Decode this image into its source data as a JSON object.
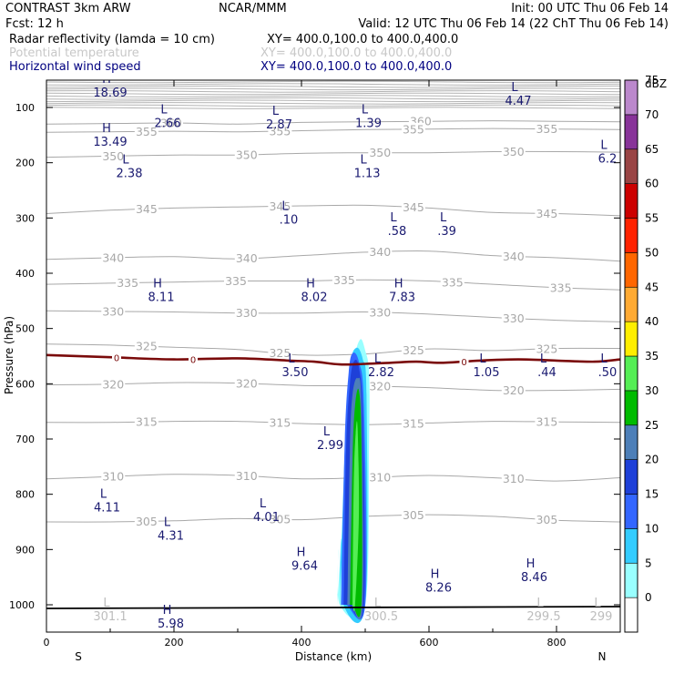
{
  "header": {
    "model": "CONTRAST  3km ARW",
    "center": "NCAR/MMM",
    "init": "Init: 00 UTC Thu 06 Feb 14",
    "fcst": "Fcst:    12 h",
    "valid": "Valid: 12 UTC Thu 06 Feb 14 (22 ChT Thu 06 Feb 14)",
    "line1_label": "Radar reflectivity (lamda = 10 cm)",
    "line1_xy": "XY= 400.0,100.0 to 400.0,400.0",
    "line2_label": "Potential temperature",
    "line2_xy": "XY= 400.0,100.0 to 400.0,400.0",
    "line3_label": "Horizontal wind speed",
    "line3_xy": "XY= 400.0,100.0 to 400.0,400.0"
  },
  "chart_data": {
    "type": "contour-cross-section",
    "xlabel": "Distance (km)",
    "ylabel": "Pressure (hPa)",
    "xlim": [
      0,
      900
    ],
    "ylim": [
      1050,
      50
    ],
    "x_ticks": [
      0,
      200,
      400,
      600,
      800
    ],
    "x_tick_labels": [
      "0",
      "200",
      "400",
      "600",
      "800"
    ],
    "y_ticks": [
      100,
      200,
      300,
      400,
      500,
      600,
      700,
      800,
      900,
      1000
    ],
    "y_tick_labels": [
      "100",
      "200",
      "300",
      "400",
      "500",
      "600",
      "700",
      "800",
      "900",
      "1000"
    ],
    "end_labels": {
      "left": "S",
      "right": "N"
    },
    "colorbar": {
      "unit": "dBZ",
      "labels": [
        "0",
        "5",
        "10",
        "15",
        "20",
        "25",
        "30",
        "35",
        "40",
        "45",
        "50",
        "55",
        "60",
        "65",
        "70",
        "75"
      ],
      "colors": [
        "#ffffff",
        "#99ffff",
        "#33ccff",
        "#3366ff",
        "#1e40d8",
        "#4d7fb8",
        "#00bb00",
        "#55ee55",
        "#ffee00",
        "#ffaa33",
        "#ff6600",
        "#ff2200",
        "#cc0000",
        "#994444",
        "#883399",
        "#bb88cc"
      ]
    },
    "theta_contours": [
      {
        "value": 360,
        "p": [
          130,
          129,
          128,
          130,
          127,
          126,
          125,
          124,
          125,
          126
        ],
        "labels": [
          "360",
          "360"
        ]
      },
      {
        "value": 355,
        "p": [
          145,
          144,
          143,
          144,
          142,
          140,
          139,
          138,
          139,
          140
        ],
        "labels": [
          "355",
          "355",
          "355",
          "355"
        ]
      },
      {
        "value": 350,
        "p": [
          190,
          188,
          186,
          186,
          183,
          182,
          182,
          180,
          180,
          181
        ],
        "labels": [
          "350",
          "350",
          "350",
          "350"
        ]
      },
      {
        "value": 345,
        "p": [
          292,
          286,
          282,
          280,
          278,
          277,
          282,
          290,
          292,
          296
        ],
        "labels": [
          "345",
          "345",
          "345",
          "345"
        ]
      },
      {
        "value": 340,
        "p": [
          375,
          372,
          370,
          374,
          368,
          362,
          360,
          368,
          372,
          378
        ],
        "labels": [
          "340",
          "340",
          "340",
          "340"
        ]
      },
      {
        "value": 335,
        "p": [
          420,
          418,
          416,
          414,
          414,
          412,
          414,
          420,
          426,
          430
        ],
        "labels": [
          "335",
          "335",
          "335",
          "335",
          "335"
        ]
      },
      {
        "value": 330,
        "p": [
          468,
          469,
          470,
          472,
          472,
          470,
          474,
          480,
          485,
          488
        ],
        "labels": [
          "330",
          "330",
          "330",
          "330"
        ]
      },
      {
        "value": 325,
        "p": [
          528,
          530,
          534,
          538,
          548,
          546,
          537,
          540,
          536,
          536
        ],
        "labels": [
          "325",
          "325",
          "325",
          "325"
        ]
      },
      {
        "value": 320,
        "p": [
          602,
          601,
          598,
          599,
          603,
          604,
          607,
          612,
          612,
          610
        ],
        "labels": [
          "320",
          "320",
          "320",
          "320"
        ]
      },
      {
        "value": 315,
        "p": [
          670,
          670,
          668,
          668,
          672,
          674,
          671,
          668,
          669,
          670
        ],
        "labels": [
          "315",
          "315",
          "315",
          "315"
        ]
      },
      {
        "value": 310,
        "p": [
          772,
          768,
          764,
          766,
          772,
          770,
          766,
          770,
          776,
          770
        ],
        "labels": [
          "310",
          "310",
          "310",
          "310"
        ]
      },
      {
        "value": 305,
        "p": [
          850,
          850,
          848,
          844,
          846,
          840,
          837,
          840,
          847,
          850
        ],
        "labels": [
          "305",
          "305",
          "305",
          "305"
        ]
      }
    ],
    "freezing_level": {
      "label": "0",
      "x": [
        0,
        100,
        200,
        300,
        380,
        420,
        460,
        500,
        540,
        580,
        620,
        680,
        740,
        800,
        860,
        900
      ],
      "p": [
        548,
        552,
        556,
        554,
        558,
        560,
        565,
        564,
        562,
        560,
        562,
        558,
        556,
        558,
        560,
        556
      ]
    },
    "reflectivity_core": [
      {
        "dbz": 5,
        "x": [
          456,
          470,
          482,
          492,
          500,
          506,
          506,
          500,
          460,
          458,
          456
        ],
        "p": [
          1000,
          760,
          570,
          520,
          540,
          580,
          700,
          1000,
          1000,
          900,
          1000
        ]
      },
      {
        "dbz": 10,
        "x": [
          460,
          468,
          476,
          486,
          496,
          502,
          500,
          466,
          462
        ],
        "p": [
          1000,
          720,
          570,
          535,
          555,
          620,
          1000,
          1000,
          880
        ]
      },
      {
        "dbz": 15,
        "x": [
          462,
          468,
          474,
          480,
          490,
          498,
          500,
          470
        ],
        "p": [
          1000,
          700,
          580,
          545,
          560,
          640,
          1000,
          1000
        ]
      },
      {
        "dbz": 20,
        "x": [
          466,
          470,
          476,
          482,
          490,
          496,
          498,
          474
        ],
        "p": [
          1000,
          720,
          600,
          560,
          570,
          660,
          1000,
          1000
        ]
      },
      {
        "dbz": 25,
        "x": [
          472,
          476,
          480,
          488,
          494,
          496,
          478
        ],
        "p": [
          1000,
          720,
          620,
          590,
          640,
          1000,
          1000
        ]
      },
      {
        "dbz": 30,
        "x": [
          476,
          480,
          484,
          490,
          494,
          494,
          480
        ],
        "p": [
          1000,
          740,
          640,
          612,
          700,
          1000,
          1000
        ]
      },
      {
        "dbz": 35,
        "x": [
          480,
          482,
          485,
          488,
          490,
          484
        ],
        "p": [
          1000,
          780,
          690,
          680,
          840,
          1000
        ]
      }
    ],
    "wind_extrema": [
      {
        "type": "H",
        "value": "18.69",
        "x": 100,
        "p": 62
      },
      {
        "type": "L",
        "value": "4.47",
        "x": 740,
        "p": 77
      },
      {
        "type": "L",
        "value": "2.66",
        "x": 190,
        "p": 117
      },
      {
        "type": "L",
        "value": "2.87",
        "x": 365,
        "p": 120
      },
      {
        "type": "L",
        "value": "1.39",
        "x": 505,
        "p": 117
      },
      {
        "type": "H",
        "value": "13.49",
        "x": 100,
        "p": 151
      },
      {
        "type": "L",
        "value": "2.38",
        "x": 130,
        "p": 208
      },
      {
        "type": "L",
        "value": "1.13",
        "x": 503,
        "p": 208
      },
      {
        "type": "L",
        "value": "6.2",
        "x": 880,
        "p": 182
      },
      {
        "type": "L",
        "value": ".10",
        "x": 380,
        "p": 292
      },
      {
        "type": "L",
        "value": ".58",
        "x": 550,
        "p": 313
      },
      {
        "type": "L",
        "value": ".39",
        "x": 628,
        "p": 313
      },
      {
        "type": "H",
        "value": "8.11",
        "x": 180,
        "p": 432
      },
      {
        "type": "H",
        "value": "8.02",
        "x": 420,
        "p": 432
      },
      {
        "type": "H",
        "value": "7.83",
        "x": 558,
        "p": 432
      },
      {
        "type": "L",
        "value": "3.50",
        "x": 390,
        "p": 568
      },
      {
        "type": "L",
        "value": "2.82",
        "x": 525,
        "p": 568
      },
      {
        "type": "L",
        "value": "1.05",
        "x": 690,
        "p": 568
      },
      {
        "type": "L",
        "value": ".44",
        "x": 785,
        "p": 568
      },
      {
        "type": "L",
        "value": ".50",
        "x": 880,
        "p": 568
      },
      {
        "type": "L",
        "value": "2.99",
        "x": 445,
        "p": 700
      },
      {
        "type": "L",
        "value": "4.01",
        "x": 345,
        "p": 830
      },
      {
        "type": "L",
        "value": "4.11",
        "x": 95,
        "p": 813
      },
      {
        "type": "L",
        "value": "4.31",
        "x": 195,
        "p": 864
      },
      {
        "type": "H",
        "value": "9.64",
        "x": 405,
        "p": 918
      },
      {
        "type": "H",
        "value": "8.26",
        "x": 615,
        "p": 958
      },
      {
        "type": "H",
        "value": "8.46",
        "x": 765,
        "p": 939
      },
      {
        "type": "H",
        "value": "5.98",
        "x": 195,
        "p": 1023
      },
      {
        "type": "L",
        "value": "301.1",
        "x": 100,
        "p": 1010,
        "faint": true
      },
      {
        "type": "L",
        "value": "300.5",
        "x": 525,
        "p": 1010,
        "faint": true
      },
      {
        "type": "L",
        "value": "299.5",
        "x": 780,
        "p": 1010,
        "faint": true
      },
      {
        "type": "L",
        "value": "299",
        "x": 870,
        "p": 1010,
        "faint": true
      }
    ]
  }
}
